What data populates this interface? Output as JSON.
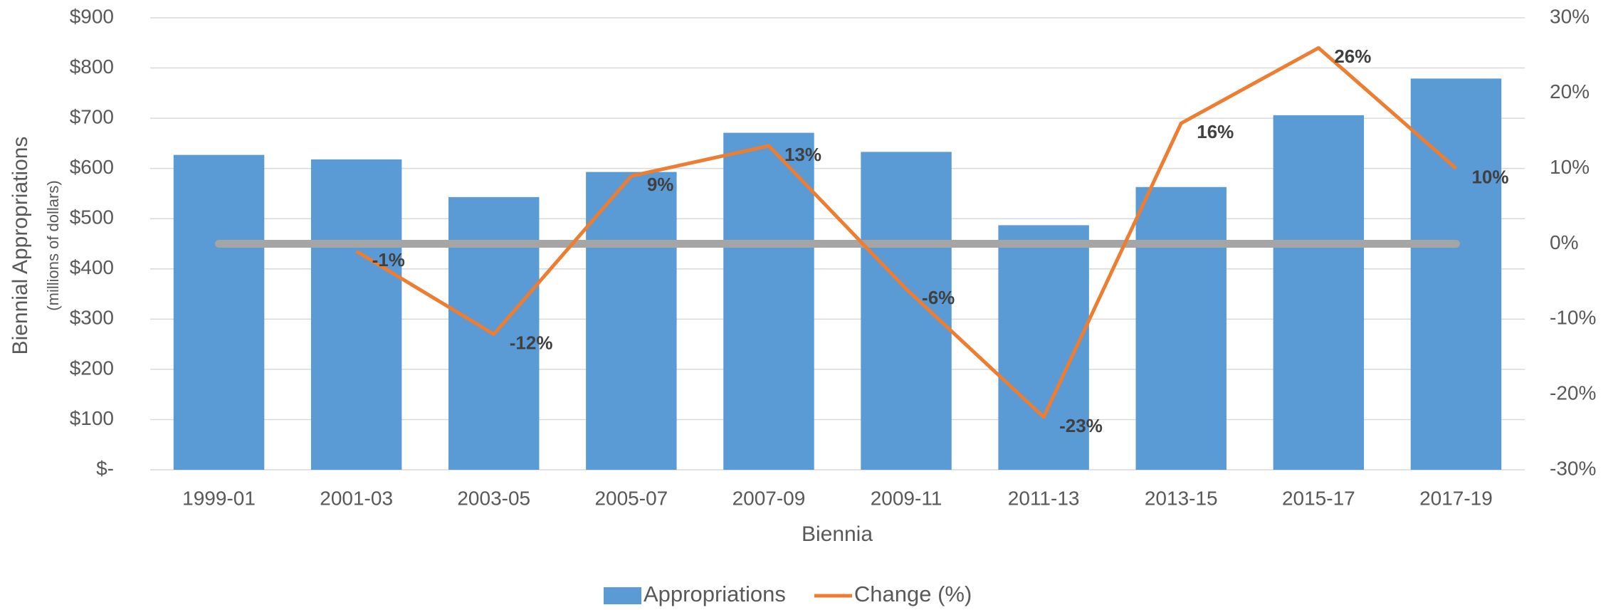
{
  "chart_data": {
    "type": "bar_line",
    "y_title": "Biennial Appropriations",
    "y_subtitle": "(millions of dollars)",
    "x_title": "Biennia",
    "categories": [
      "1999-01",
      "2001-03",
      "2003-05",
      "2005-07",
      "2007-09",
      "2009-11",
      "2011-13",
      "2013-15",
      "2015-17",
      "2017-19"
    ],
    "series": [
      {
        "name": "Appropriations",
        "type": "bar",
        "color": "#5b9bd5",
        "values": [
          627,
          618,
          543,
          593,
          671,
          633,
          487,
          563,
          706,
          779
        ]
      },
      {
        "name": "Change (%)",
        "type": "line",
        "axis": "y2",
        "color": "#ed7d31",
        "values": [
          null,
          -1,
          -12,
          9,
          13,
          -6,
          -23,
          16,
          26,
          10
        ],
        "value_labels": [
          null,
          "-1%",
          "-12%",
          "9%",
          "13%",
          "-6%",
          "-23%",
          "16%",
          "26%",
          "10%"
        ]
      }
    ],
    "reference_line": {
      "axis": "y2",
      "value": 0,
      "color": "#a5a5a5"
    },
    "ylim": [
      0,
      900
    ],
    "yticks": [
      {
        "value": 0,
        "label": "$-"
      },
      {
        "value": 100,
        "label": "$100"
      },
      {
        "value": 200,
        "label": "$200"
      },
      {
        "value": 300,
        "label": "$300"
      },
      {
        "value": 400,
        "label": "$400"
      },
      {
        "value": 500,
        "label": "$500"
      },
      {
        "value": 600,
        "label": "$600"
      },
      {
        "value": 700,
        "label": "$700"
      },
      {
        "value": 800,
        "label": "$800"
      },
      {
        "value": 900,
        "label": "$900"
      }
    ],
    "y2lim": [
      -30,
      30
    ],
    "y2ticks": [
      {
        "value": -30,
        "label": "-30%"
      },
      {
        "value": -20,
        "label": "-20%"
      },
      {
        "value": -10,
        "label": "-10%"
      },
      {
        "value": 0,
        "label": "0%"
      },
      {
        "value": 10,
        "label": "10%"
      },
      {
        "value": 20,
        "label": "20%"
      },
      {
        "value": 30,
        "label": "30%"
      }
    ],
    "grid": true,
    "legend": "bottom"
  }
}
